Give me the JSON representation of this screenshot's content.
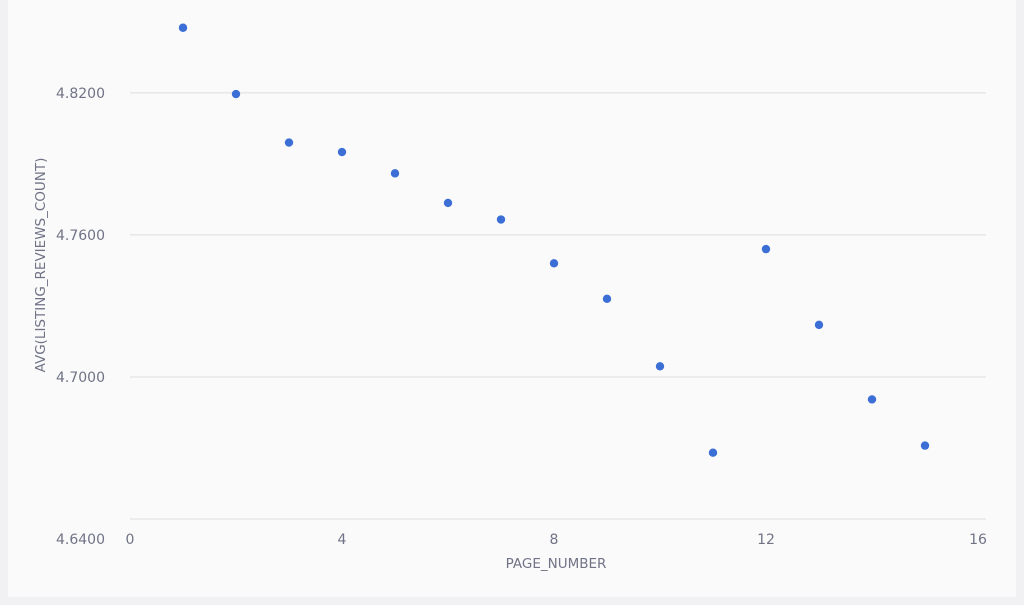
{
  "chart_data": {
    "type": "scatter",
    "xlabel": "PAGE_NUMBER",
    "ylabel": "AVG(LISTING_REVIEWS_COUNT)",
    "xlim": [
      0,
      16
    ],
    "ylim": [
      4.64,
      4.855
    ],
    "xticks": [
      "0",
      "4",
      "8",
      "12",
      "16"
    ],
    "yticks": [
      "4.6400",
      "4.7000",
      "4.7600",
      "4.8200"
    ],
    "ytick_values": [
      4.64,
      4.7,
      4.76,
      4.82
    ],
    "grid": "horizontal",
    "points": [
      {
        "x": 1,
        "y": 4.8475
      },
      {
        "x": 2,
        "y": 4.8195
      },
      {
        "x": 3,
        "y": 4.799
      },
      {
        "x": 4,
        "y": 4.795
      },
      {
        "x": 5,
        "y": 4.786
      },
      {
        "x": 6,
        "y": 4.7735
      },
      {
        "x": 7,
        "y": 4.7665
      },
      {
        "x": 8,
        "y": 4.748
      },
      {
        "x": 9,
        "y": 4.733
      },
      {
        "x": 10,
        "y": 4.7045
      },
      {
        "x": 11,
        "y": 4.668
      },
      {
        "x": 12,
        "y": 4.754
      },
      {
        "x": 13,
        "y": 4.722
      },
      {
        "x": 14,
        "y": 4.6905
      },
      {
        "x": 15,
        "y": 4.671
      }
    ],
    "point_color": "#3b6fd6"
  }
}
